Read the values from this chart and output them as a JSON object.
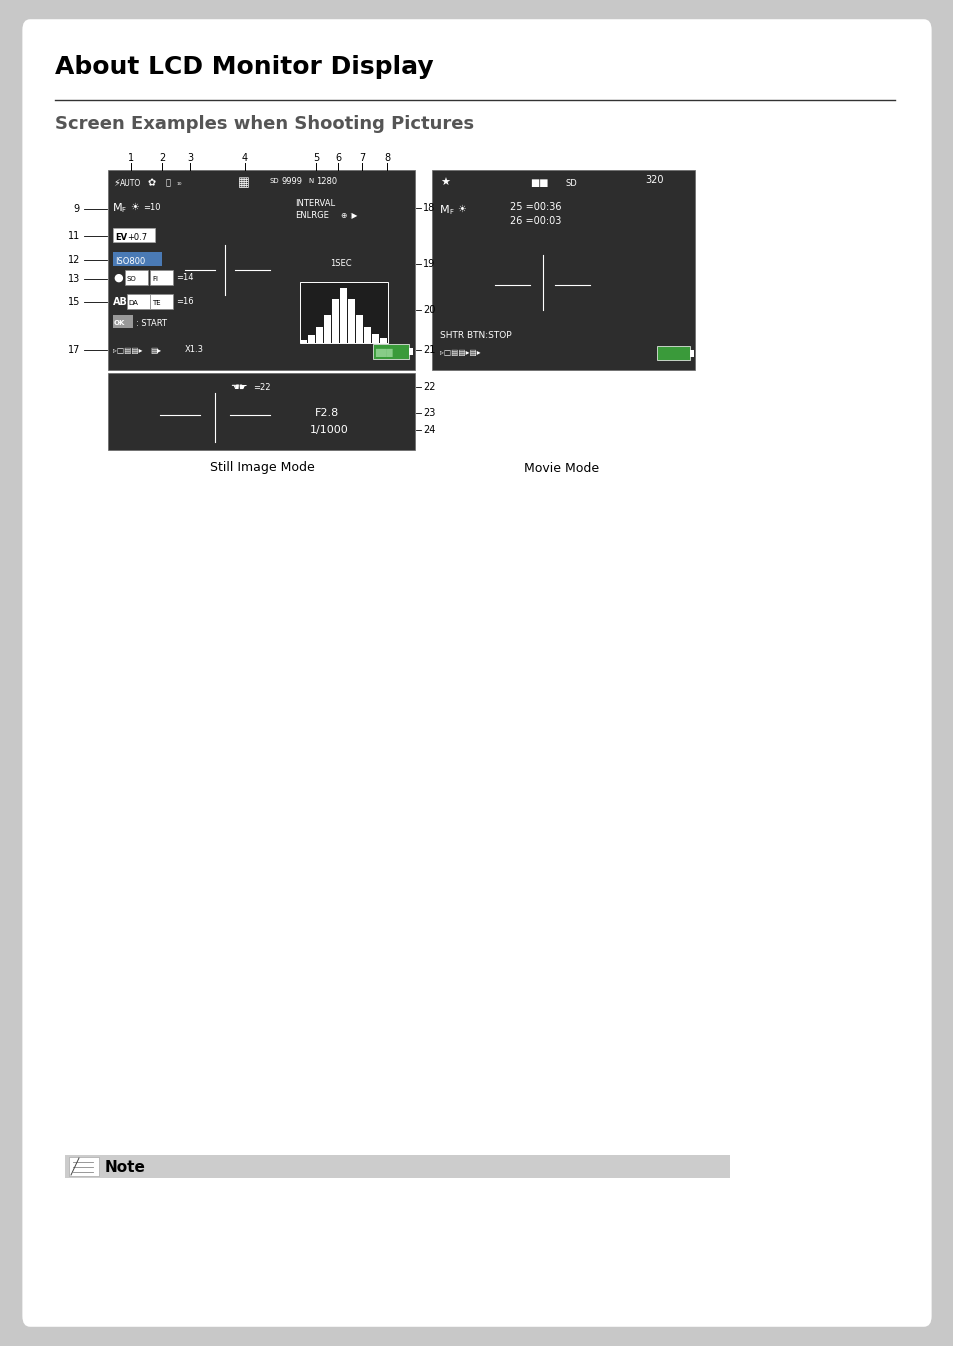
{
  "page_bg": "#c8c8c8",
  "card_bg": "#ffffff",
  "title": "About LCD Monitor Display",
  "subtitle": "Screen Examples when Shooting Pictures",
  "screen_bg": "#2d2d2d",
  "note_bar_color": "#cccccc",
  "note_label": "Note",
  "still_image_label": "Still Image Mode",
  "movie_label": "Movie Mode",
  "fig_w": 9.54,
  "fig_h": 13.46,
  "dpi": 100
}
